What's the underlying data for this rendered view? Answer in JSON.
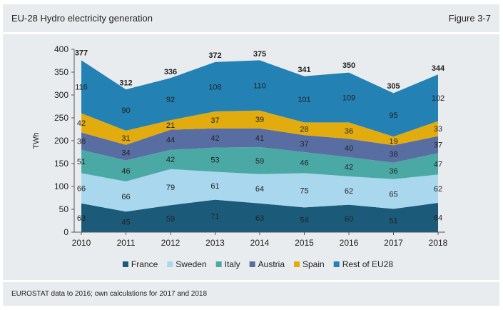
{
  "header": {
    "title": "EU-28 Hydro electricity generation",
    "figure": "Figure 3-7"
  },
  "footer": {
    "source": "EUROSTAT data to 2016; own calculations for 2017 and 2018"
  },
  "colors": {
    "France": "#1b5a78",
    "Sweden": "#a9d7ee",
    "Italy": "#4ba9a5",
    "Austria": "#586ea2",
    "Spain": "#e3ac0e",
    "Rest of EU28": "#2381b4"
  },
  "chart_data": {
    "type": "area",
    "stacked": true,
    "x": [
      "2010",
      "2011",
      "2012",
      "2013",
      "2014",
      "2015",
      "2016",
      "2017",
      "2018"
    ],
    "series": [
      {
        "name": "France",
        "values": [
          63,
          45,
          59,
          71,
          63,
          54,
          60,
          51,
          64
        ]
      },
      {
        "name": "Sweden",
        "values": [
          66,
          66,
          79,
          61,
          64,
          75,
          62,
          65,
          62
        ]
      },
      {
        "name": "Italy",
        "values": [
          51,
          46,
          42,
          53,
          59,
          46,
          42,
          36,
          47
        ]
      },
      {
        "name": "Austria",
        "values": [
          38,
          34,
          44,
          42,
          41,
          37,
          40,
          38,
          37
        ]
      },
      {
        "name": "Spain",
        "values": [
          42,
          31,
          21,
          37,
          39,
          28,
          36,
          19,
          33
        ]
      },
      {
        "name": "Rest of EU28",
        "values": [
          116,
          90,
          92,
          108,
          110,
          101,
          109,
          95,
          102
        ]
      }
    ],
    "totals": [
      377,
      312,
      336,
      372,
      375,
      341,
      350,
      305,
      344
    ],
    "ylabel": "TWh",
    "ylim": [
      0,
      400
    ],
    "yticks": [
      0,
      50,
      100,
      150,
      200,
      250,
      300,
      350,
      400
    ],
    "grid": false,
    "legend": "bottom"
  }
}
